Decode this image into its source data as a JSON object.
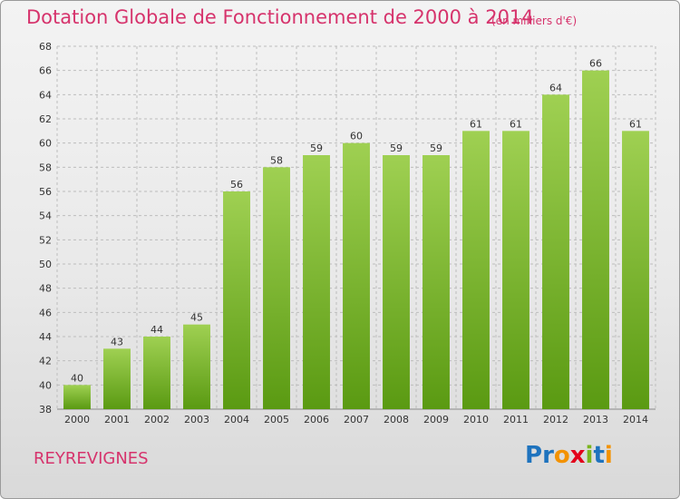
{
  "title": "Dotation Globale de Fonctionnement de 2000 à 2014",
  "unit_note": "(en milliers d'€)",
  "commune": "REYREVIGNES",
  "logo": {
    "text": "Proxiti",
    "letters": [
      {
        "ch": "P",
        "color": "#1e73be"
      },
      {
        "ch": "r",
        "color": "#1e73be"
      },
      {
        "ch": "o",
        "color": "#f39200"
      },
      {
        "ch": "x",
        "color": "#e3001b"
      },
      {
        "ch": "i",
        "color": "#7ab51d"
      },
      {
        "ch": "t",
        "color": "#1e73be"
      },
      {
        "ch": "i",
        "color": "#f39200"
      }
    ]
  },
  "colors": {
    "accent": "#d6336c",
    "bar_top": "#9fd052",
    "bar_bottom": "#5a9a12",
    "grid": "#bdbdbd"
  },
  "chart_data": {
    "type": "bar",
    "title": "Dotation Globale de Fonctionnement de 2000 à 2014",
    "subtitle": "(en milliers d'€)",
    "xlabel": "",
    "ylabel": "",
    "categories": [
      "2000",
      "2001",
      "2002",
      "2003",
      "2004",
      "2005",
      "2006",
      "2007",
      "2008",
      "2009",
      "2010",
      "2011",
      "2012",
      "2013",
      "2014"
    ],
    "values": [
      40,
      43,
      44,
      45,
      56,
      58,
      59,
      60,
      59,
      59,
      61,
      61,
      64,
      66,
      61
    ],
    "ylim": [
      38,
      68
    ],
    "yticks": [
      38,
      40,
      42,
      44,
      46,
      48,
      50,
      52,
      54,
      56,
      58,
      60,
      62,
      64,
      66,
      68
    ],
    "grid": true,
    "legend": "none"
  }
}
